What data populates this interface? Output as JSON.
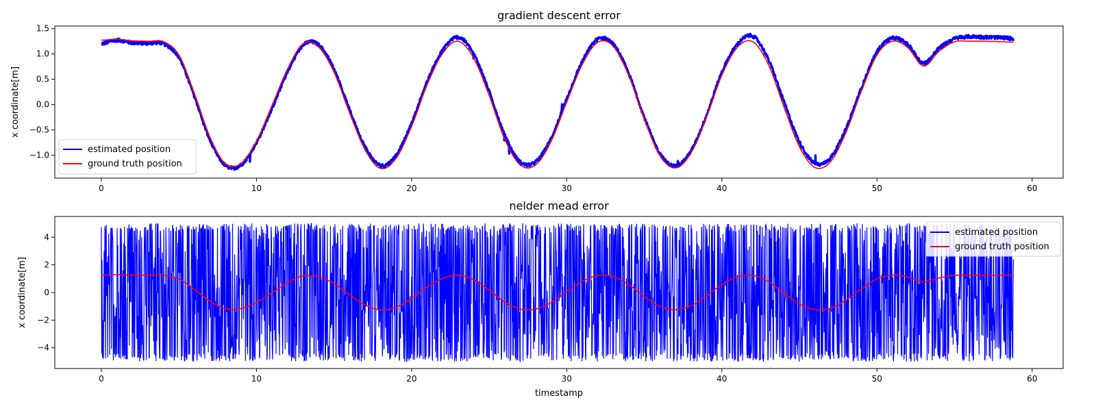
{
  "chart_data": [
    {
      "type": "line",
      "title": "gradient descent error",
      "xlabel": "",
      "ylabel": "x coordinate[m]",
      "xlim": [
        -3,
        62
      ],
      "ylim": [
        -1.45,
        1.55
      ],
      "xticks": [
        0,
        10,
        20,
        30,
        40,
        50,
        60
      ],
      "xtick_labels": [
        "0",
        "10",
        "20",
        "30",
        "40",
        "50",
        "60"
      ],
      "yticks": [
        -1.0,
        -0.5,
        0.0,
        0.5,
        1.0,
        1.5
      ],
      "ytick_labels": [
        "−1.0",
        "−0.5",
        "0.0",
        "0.5",
        "1.0",
        "1.5"
      ],
      "grid": false,
      "legend_position": "lower-left",
      "series": [
        {
          "name": "estimated position",
          "color": "#0000ff"
        },
        {
          "name": "ground truth position",
          "color": "#ff0000"
        }
      ],
      "x": [
        0,
        1,
        2,
        3,
        4,
        5,
        6,
        7,
        8,
        9,
        10,
        11,
        12,
        13,
        14,
        15,
        16,
        17,
        18,
        19,
        20,
        21,
        22,
        23,
        24,
        25,
        26,
        27,
        28,
        29,
        30,
        31,
        32,
        33,
        34,
        35,
        36,
        37,
        38,
        39,
        40,
        41,
        42,
        43,
        44,
        45,
        46,
        47,
        48,
        49,
        50,
        51,
        52,
        53,
        54,
        55,
        56,
        57,
        58,
        59
      ],
      "ground_truth": [
        1.27,
        1.29,
        1.26,
        1.25,
        1.24,
        0.98,
        0.22,
        -0.64,
        -1.17,
        -1.16,
        -0.72,
        -0.02,
        0.7,
        1.2,
        1.14,
        0.64,
        -0.16,
        -0.89,
        -1.26,
        -1.06,
        -0.43,
        0.39,
        1.01,
        1.25,
        0.92,
        0.18,
        -0.68,
        -1.19,
        -1.19,
        -0.72,
        0.05,
        0.79,
        1.23,
        1.15,
        0.57,
        -0.29,
        -1.0,
        -1.25,
        -0.96,
        -0.26,
        0.58,
        1.13,
        1.24,
        0.79,
        -0.04,
        -0.83,
        -1.24,
        -1.13,
        -0.55,
        0.27,
        0.98,
        1.25,
        1.12,
        0.76,
        1.05,
        1.24,
        1.25,
        1.25,
        1.24,
        1.23
      ],
      "estimated": [
        1.2,
        1.27,
        1.22,
        1.21,
        1.2,
        0.93,
        0.16,
        -0.7,
        -1.2,
        -1.19,
        -0.75,
        -0.08,
        0.64,
        1.17,
        1.18,
        0.7,
        -0.1,
        -0.83,
        -1.2,
        -1.0,
        -0.37,
        0.45,
        1.07,
        1.33,
        1.0,
        0.26,
        -0.6,
        -1.13,
        -1.13,
        -0.66,
        0.11,
        0.85,
        1.29,
        1.19,
        0.61,
        -0.25,
        -0.96,
        -1.21,
        -0.92,
        -0.22,
        0.64,
        1.19,
        1.35,
        0.89,
        0.06,
        -0.73,
        -1.16,
        -1.05,
        -0.47,
        0.33,
        1.04,
        1.31,
        1.18,
        0.82,
        1.11,
        1.3,
        1.34,
        1.33,
        1.32,
        1.3
      ]
    },
    {
      "type": "line",
      "title": "nelder mead error",
      "xlabel": "timestamp",
      "ylabel": "x coordinate[m]",
      "xlim": [
        -3,
        62
      ],
      "ylim": [
        -5.5,
        5.5
      ],
      "xticks": [
        0,
        10,
        20,
        30,
        40,
        50,
        60
      ],
      "xtick_labels": [
        "0",
        "10",
        "20",
        "30",
        "40",
        "50",
        "60"
      ],
      "yticks": [
        -4,
        -2,
        0,
        2,
        4
      ],
      "ytick_labels": [
        "−4",
        "−2",
        "0",
        "2",
        "4"
      ],
      "grid": false,
      "legend_position": "upper-right",
      "series": [
        {
          "name": "estimated position",
          "color": "#0000ff"
        },
        {
          "name": "ground truth position",
          "color": "#ff0000"
        }
      ],
      "estimated_range": [
        -5,
        5
      ],
      "x": [
        0,
        1,
        2,
        3,
        4,
        5,
        6,
        7,
        8,
        9,
        10,
        11,
        12,
        13,
        14,
        15,
        16,
        17,
        18,
        19,
        20,
        21,
        22,
        23,
        24,
        25,
        26,
        27,
        28,
        29,
        30,
        31,
        32,
        33,
        34,
        35,
        36,
        37,
        38,
        39,
        40,
        41,
        42,
        43,
        44,
        45,
        46,
        47,
        48,
        49,
        50,
        51,
        52,
        53,
        54,
        55,
        56,
        57,
        58,
        59
      ],
      "ground_truth": [
        1.27,
        1.29,
        1.26,
        1.25,
        1.24,
        0.98,
        0.22,
        -0.64,
        -1.17,
        -1.16,
        -0.72,
        -0.02,
        0.7,
        1.2,
        1.14,
        0.64,
        -0.16,
        -0.89,
        -1.26,
        -1.06,
        -0.43,
        0.39,
        1.01,
        1.25,
        0.92,
        0.18,
        -0.68,
        -1.19,
        -1.19,
        -0.72,
        0.05,
        0.79,
        1.23,
        1.15,
        0.57,
        -0.29,
        -1.0,
        -1.25,
        -0.96,
        -0.26,
        0.58,
        1.13,
        1.24,
        0.79,
        -0.04,
        -0.83,
        -1.24,
        -1.13,
        -0.55,
        0.27,
        0.98,
        1.25,
        1.12,
        0.76,
        1.05,
        1.24,
        1.25,
        1.25,
        1.24,
        1.23
      ]
    }
  ]
}
